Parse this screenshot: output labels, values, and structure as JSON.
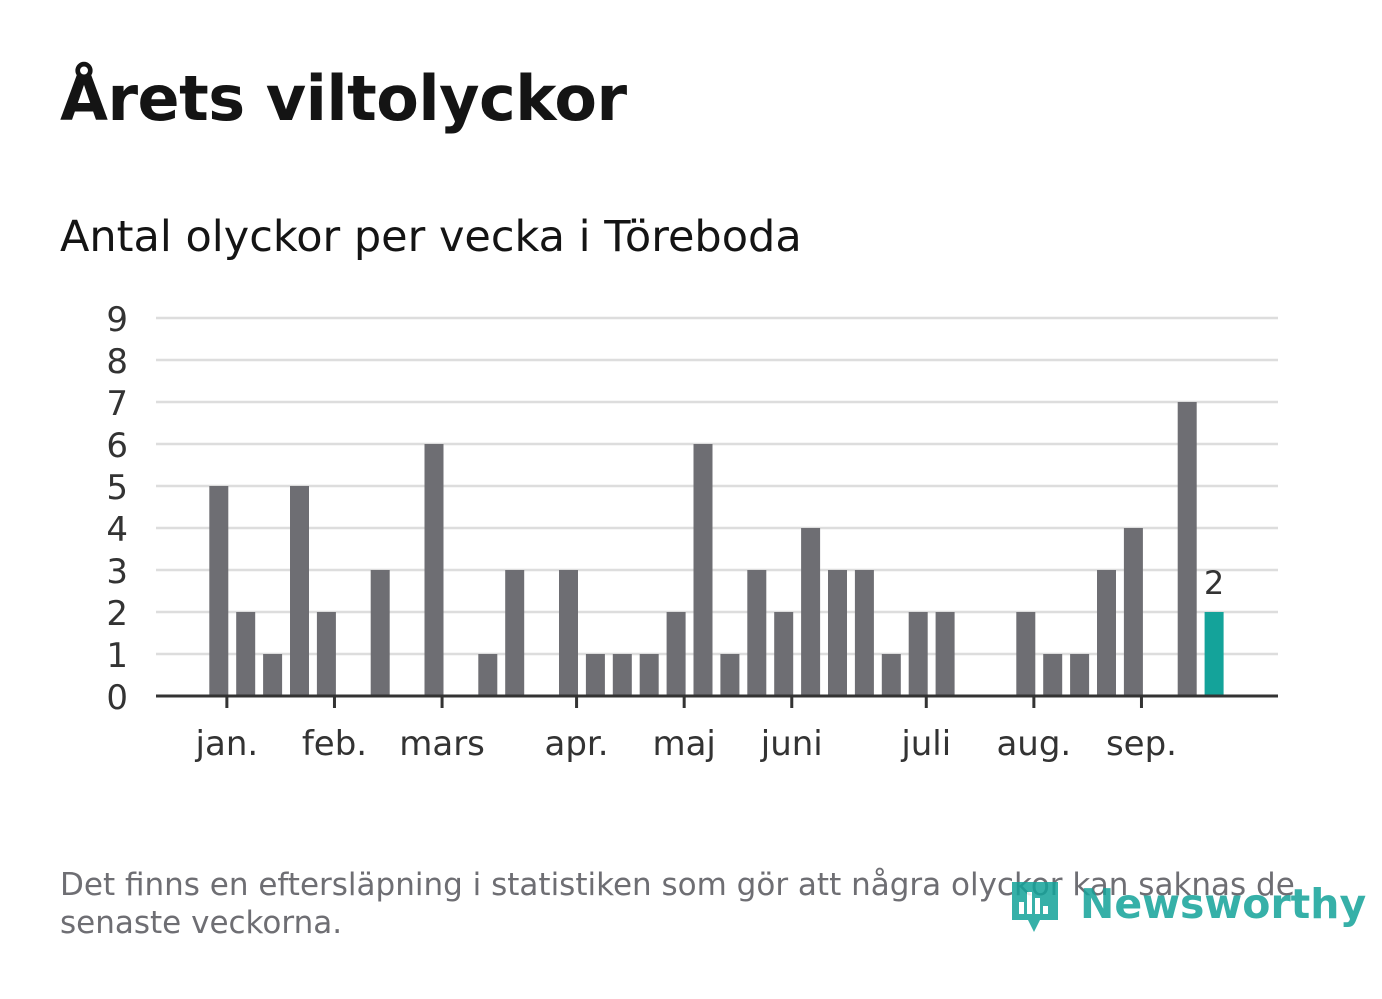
{
  "title": "Årets viltolyckor",
  "subtitle": "Antal olyckor per vecka i Töreboda",
  "footnote": "Det finns en eftersläpning i statistiken som gör att några olyckor kan saknas de senaste veckorna.",
  "brand": {
    "name": "Newsworthy",
    "icon": "newsworthy-logo-icon",
    "color": "#14a39a"
  },
  "colors": {
    "bar": "#6e6e73",
    "highlight": "#14a39a",
    "grid": "#dddddd",
    "axis": "#333333"
  },
  "chart_data": {
    "type": "bar",
    "title": "Antal olyckor per vecka i Töreboda",
    "xlabel": "",
    "ylabel": "",
    "ylim": [
      0,
      9
    ],
    "yticks": [
      0,
      1,
      2,
      3,
      4,
      5,
      6,
      7,
      8,
      9
    ],
    "grid": true,
    "weeks": [
      1,
      2,
      3,
      4,
      5,
      6,
      7,
      8,
      9,
      10,
      11,
      12,
      13,
      14,
      15,
      16,
      17,
      18,
      19,
      20,
      21,
      22,
      23,
      24,
      25,
      26,
      27,
      28,
      29,
      30,
      31,
      32,
      33,
      34,
      35,
      36,
      37,
      38,
      39,
      40,
      41,
      42
    ],
    "values": [
      0,
      0,
      5,
      2,
      1,
      5,
      2,
      0,
      3,
      0,
      6,
      0,
      1,
      3,
      0,
      3,
      1,
      1,
      1,
      2,
      6,
      1,
      3,
      2,
      4,
      3,
      3,
      1,
      2,
      2,
      0,
      0,
      2,
      1,
      1,
      3,
      4,
      0,
      7,
      2,
      0,
      0
    ],
    "highlight_index": 39,
    "highlight_label": "2",
    "month_labels": [
      {
        "label": "jan.",
        "week_position": 3.3
      },
      {
        "label": "feb.",
        "week_position": 7.3
      },
      {
        "label": "mars",
        "week_position": 11.3
      },
      {
        "label": "apr.",
        "week_position": 16.3
      },
      {
        "label": "maj",
        "week_position": 20.3
      },
      {
        "label": "juni",
        "week_position": 24.3
      },
      {
        "label": "juli",
        "week_position": 29.3
      },
      {
        "label": "aug.",
        "week_position": 33.3
      },
      {
        "label": "sep.",
        "week_position": 37.3
      }
    ]
  }
}
